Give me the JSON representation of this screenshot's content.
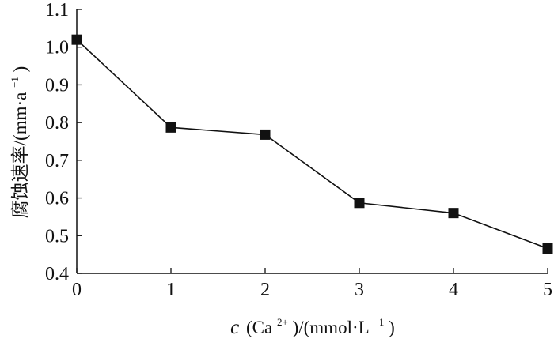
{
  "chart_data": {
    "type": "line",
    "x": [
      0,
      1,
      2,
      3,
      4,
      5
    ],
    "series": [
      {
        "values": [
          1.02,
          0.787,
          0.768,
          0.587,
          0.56,
          0.466
        ]
      }
    ],
    "xlim": [
      0,
      5
    ],
    "ylim": [
      0.4,
      1.1
    ],
    "xticks": [
      "0",
      "1",
      "2",
      "3",
      "4",
      "5"
    ],
    "yticks": [
      "0.4",
      "0.5",
      "0.6",
      "0.7",
      "0.8",
      "0.9",
      "1.0",
      "1.1"
    ],
    "xlabel": {
      "italic": "c",
      "base": "(Ca",
      "sup": "2+",
      "rest": ")/(mmol·L",
      "sup2": "−1",
      "close": ")"
    },
    "ylabel": {
      "base": "腐蚀速率/(mm·a",
      "sup": "−1",
      "close": ")"
    },
    "grid": false,
    "marker": "square",
    "colors": {
      "line": "#111111",
      "marker": "#111111",
      "axis": "#111111"
    }
  }
}
